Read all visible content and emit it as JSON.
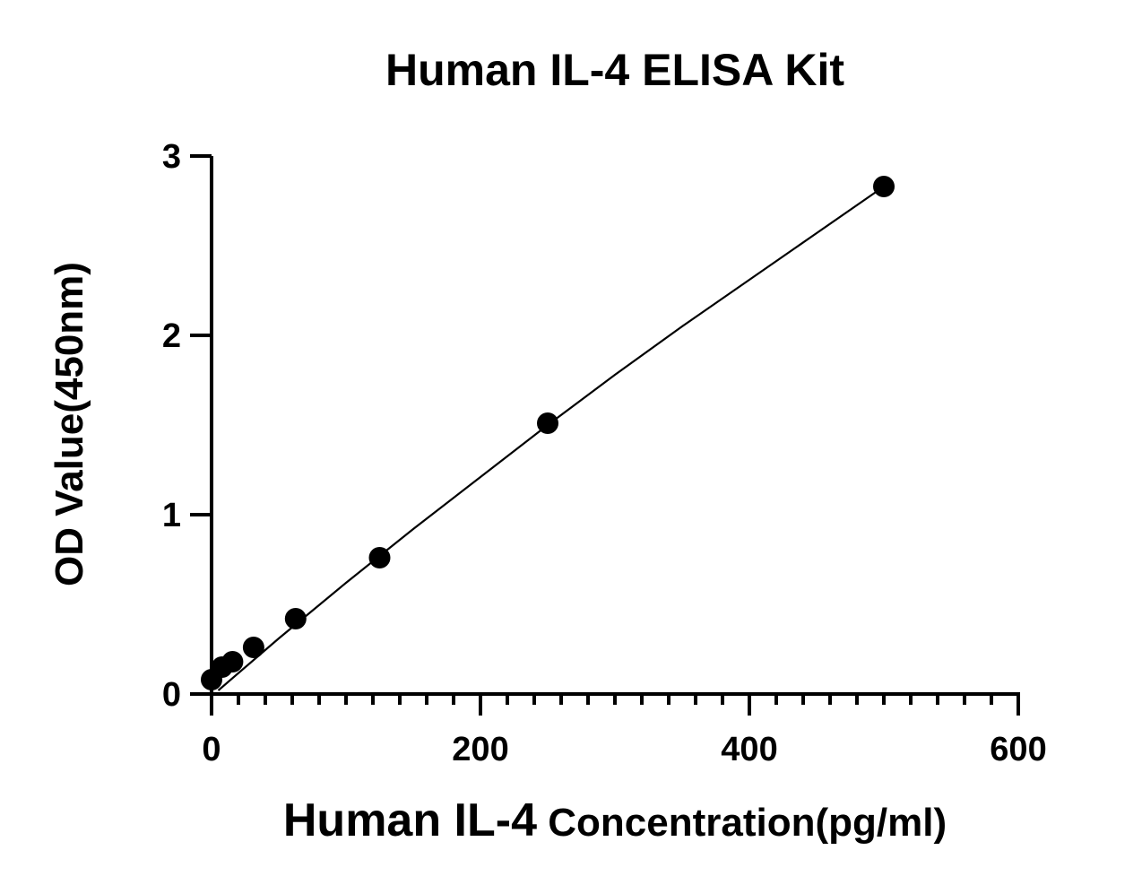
{
  "chart_data": {
    "type": "scatter",
    "title": "Human IL-4 ELISA Kit",
    "xlabel_main": "Human IL-4",
    "xlabel_rest": " Concentration(pg/ml)",
    "ylabel": "OD Value(450nm)",
    "xlim": [
      0,
      600
    ],
    "ylim": [
      0,
      3
    ],
    "x_ticks": [
      0,
      200,
      400,
      600
    ],
    "x_tick_labels": [
      "0",
      "200",
      "400",
      "600"
    ],
    "x_minor_step": 20,
    "y_ticks": [
      0,
      1,
      2,
      3
    ],
    "y_tick_labels": [
      "0",
      "1",
      "2",
      "3"
    ],
    "grid": false,
    "legend": "none",
    "series": [
      {
        "points": [
          {
            "x": 0,
            "y": 0.08
          },
          {
            "x": 7.8,
            "y": 0.15
          },
          {
            "x": 15.6,
            "y": 0.18
          },
          {
            "x": 31.25,
            "y": 0.26
          },
          {
            "x": 62.5,
            "y": 0.42
          },
          {
            "x": 125,
            "y": 0.76
          },
          {
            "x": 250,
            "y": 1.51
          },
          {
            "x": 500,
            "y": 2.83
          }
        ],
        "fit_curve": [
          [
            5,
            0.02
          ],
          [
            50,
            0.31
          ],
          [
            100,
            0.62
          ],
          [
            150,
            0.92
          ],
          [
            200,
            1.21
          ],
          [
            250,
            1.5
          ],
          [
            300,
            1.78
          ],
          [
            350,
            2.05
          ],
          [
            400,
            2.31
          ],
          [
            450,
            2.57
          ],
          [
            500,
            2.83
          ]
        ]
      }
    ],
    "colors": {
      "axis": "#000000",
      "point": "#000000",
      "curve": "#000000"
    }
  }
}
